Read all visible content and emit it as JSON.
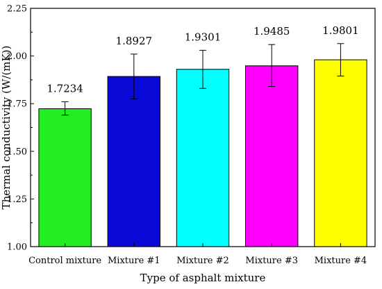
{
  "chart_data": {
    "type": "bar",
    "title": "",
    "xlabel": "Type of asphalt mixture",
    "ylabel": "Thermal conductivity (W/(mK))",
    "categories": [
      "Control mixture",
      "Mixture #1",
      "Mixture #2",
      "Mixture #3",
      "Mixture #4"
    ],
    "values": [
      1.7234,
      1.8927,
      1.9301,
      1.9485,
      1.9801
    ],
    "value_labels": [
      "1.7234",
      "1.8927",
      "1.9301",
      "1.9485",
      "1.9801"
    ],
    "error_low": [
      1.69,
      1.775,
      1.83,
      1.84,
      1.895
    ],
    "error_high": [
      1.76,
      2.01,
      2.03,
      2.06,
      2.065
    ],
    "colors": [
      "#22ee22",
      "#0a0ad8",
      "#00ffff",
      "#ff00ff",
      "#ffff00"
    ],
    "ylim": [
      1.0,
      2.25
    ],
    "yticks": [
      "1.00",
      "1.25",
      "1.50",
      "1.75",
      "2.00",
      "2.25"
    ],
    "ytick_values": [
      1.0,
      1.25,
      1.5,
      1.75,
      2.0,
      2.25
    ],
    "grid": false,
    "legend": "none"
  }
}
